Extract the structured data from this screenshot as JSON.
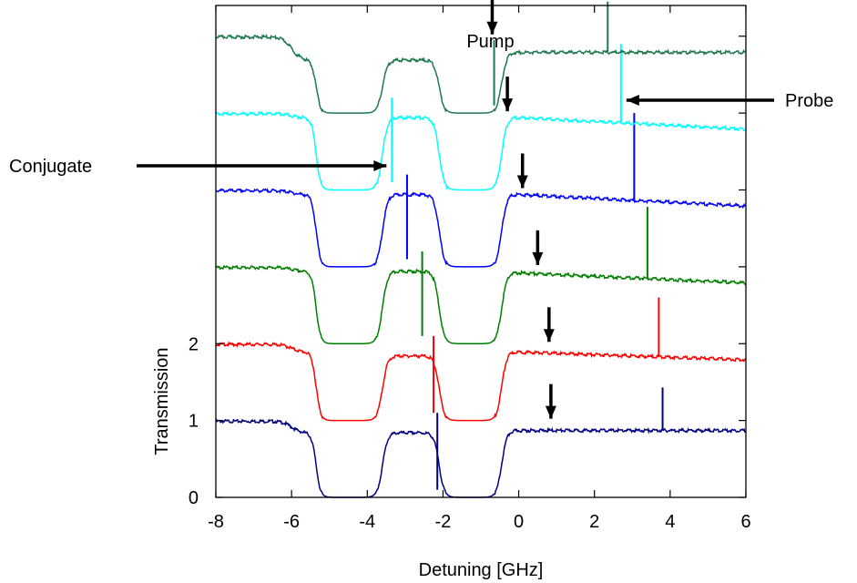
{
  "chart_data": {
    "type": "line",
    "title": "",
    "xlabel": "Detuning [GHz]",
    "ylabel": "Transmission",
    "xlim": [
      -8,
      6
    ],
    "ylim": [
      0,
      6.4
    ],
    "xticks": [
      "-8",
      "-6",
      "-4",
      "-2",
      "0",
      "2",
      "4",
      "6"
    ],
    "xtick_values": [
      -8,
      -6,
      -4,
      -2,
      0,
      2,
      4,
      6
    ],
    "yticks": [
      "0",
      "1",
      "2"
    ],
    "ytick_values": [
      0,
      1,
      2
    ],
    "grid": false,
    "series": [
      {
        "color": "#000080",
        "offset": 0,
        "left": 1.0,
        "mid": 0.85,
        "mid2": 0.85,
        "right": 0.88,
        "tail": 0.88,
        "probe": 3.8,
        "probe_h": 0.55,
        "conj": -2.15,
        "pump": 0.85
      },
      {
        "color": "#ff0000",
        "offset": 1,
        "left": 1.0,
        "mid": 0.9,
        "mid2": 0.85,
        "right": 0.9,
        "tail": 0.8,
        "probe": 3.7,
        "probe_h": 0.7,
        "conj": -2.25,
        "pump": 0.8
      },
      {
        "color": "#008000",
        "offset": 2,
        "left": 1.0,
        "mid": 0.95,
        "mid2": 0.95,
        "right": 0.93,
        "tail": 0.8,
        "probe": 3.4,
        "probe_h": 0.85,
        "conj": -2.55,
        "pump": 0.5
      },
      {
        "color": "#0000ff",
        "offset": 3,
        "left": 1.0,
        "mid": 0.95,
        "mid2": 0.95,
        "right": 0.95,
        "tail": 0.8,
        "probe": 3.05,
        "probe_h": 1.05,
        "conj": -2.95,
        "pump": 0.1
      },
      {
        "color": "#00ffff",
        "offset": 4,
        "left": 1.0,
        "mid": 0.95,
        "mid2": 0.95,
        "right": 0.95,
        "tail": 0.8,
        "probe": 2.7,
        "probe_h": 0.95,
        "conj": -3.35,
        "pump": -0.3
      },
      {
        "color": "#1e7850",
        "offset": 5,
        "left": 1.0,
        "mid": 0.7,
        "mid2": 0.7,
        "right": 0.8,
        "tail": 0.8,
        "probe": 2.35,
        "probe_h": 0.65,
        "conj": -0.65,
        "pump": -0.7
      }
    ],
    "annotations": [
      {
        "text": "Pump"
      },
      {
        "text": "Probe"
      },
      {
        "text": "Conjugate"
      }
    ]
  }
}
